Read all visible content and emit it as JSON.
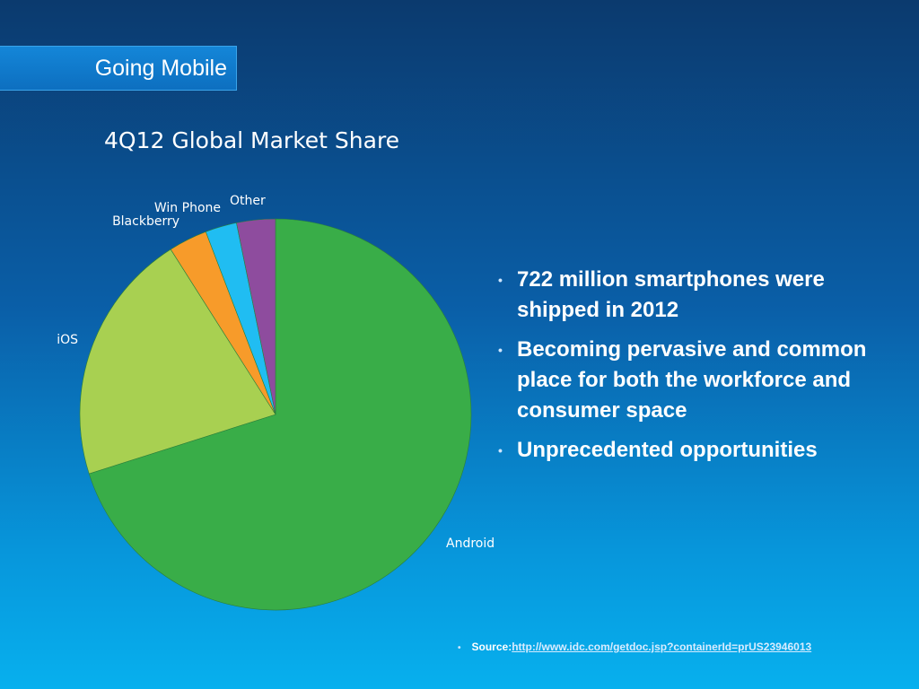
{
  "slide": {
    "title": "Going Mobile",
    "bullets": [
      "722 million smartphones were shipped in 2012",
      "Becoming pervasive and common place for both the workforce and consumer space",
      "Unprecedented opportunities"
    ],
    "source_label": "Source:",
    "source_link": "http://www.idc.com/getdoc.jsp?containerId=prUS23946013"
  },
  "chart_data": {
    "type": "pie",
    "title": "4Q12 Global Market Share",
    "categories": [
      "Android",
      "iOS",
      "Blackberry",
      "Win Phone",
      "Other"
    ],
    "values": [
      70.1,
      20.9,
      3.2,
      2.6,
      3.2
    ],
    "colors": [
      "#39ad48",
      "#a8d051",
      "#f79b2a",
      "#20bdf2",
      "#8e4c9e"
    ],
    "start_angle_deg": 0,
    "direction": "clockwise",
    "legend": "none"
  }
}
